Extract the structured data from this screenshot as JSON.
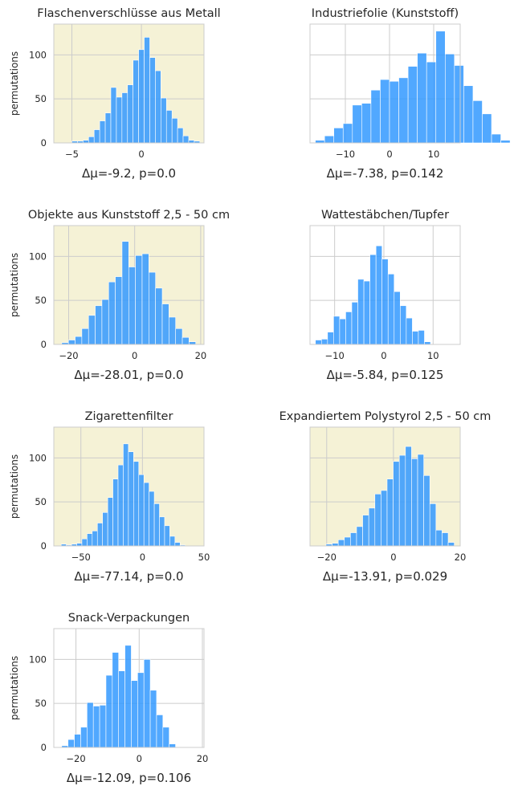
{
  "figure": {
    "ylabel": "permutations"
  },
  "colors": {
    "bar": "#3399ff",
    "highlight_bg": "#f5f2d6",
    "plain_bg": "#ffffff",
    "grid": "#cccccc"
  },
  "chart_data": [
    {
      "type": "bar",
      "title": "Flaschenverschlüsse aus Metall",
      "xlabel": "Δμ=-9.2, p=0.0",
      "ylabel": "permutations",
      "highlighted": true,
      "xlim": [
        -6.3,
        4.5
      ],
      "ylim": [
        0,
        135
      ],
      "xticks": [
        -5,
        0
      ],
      "yticks": [
        0,
        50,
        100
      ],
      "bin_start": -5.0,
      "bin_width": 0.4,
      "values": [
        2,
        2,
        3,
        7,
        15,
        25,
        34,
        63,
        52,
        57,
        66,
        94,
        106,
        120,
        97,
        82,
        51,
        37,
        28,
        17,
        8,
        3,
        2
      ]
    },
    {
      "type": "bar",
      "title": "Industriefolie (Kunststoff)",
      "xlabel": "Δμ=-7.38, p=0.142",
      "ylabel": "permutations",
      "highlighted": false,
      "xlim": [
        -18,
        16
      ],
      "ylim": [
        0,
        135
      ],
      "xticks": [
        -10,
        0,
        10
      ],
      "yticks": [
        0,
        50,
        100
      ],
      "bin_start": -16.8,
      "bin_width": 2.1,
      "values": [
        3,
        8,
        17,
        22,
        43,
        45,
        60,
        72,
        70,
        74,
        87,
        102,
        92,
        127,
        101,
        88,
        65,
        48,
        33,
        10,
        3
      ]
    },
    {
      "type": "bar",
      "title": "Objekte aus Kunststoff 2,5 - 50 cm",
      "xlabel": "Δμ=-28.01, p=0.0",
      "ylabel": "permutations",
      "highlighted": true,
      "xlim": [
        -24.5,
        21
      ],
      "ylim": [
        0,
        135
      ],
      "xticks": [
        -20,
        0,
        20
      ],
      "yticks": [
        0,
        50,
        100
      ],
      "bin_start": -22.1,
      "bin_width": 2.03,
      "values": [
        2,
        5,
        9,
        18,
        33,
        44,
        51,
        71,
        77,
        117,
        88,
        101,
        103,
        82,
        64,
        46,
        31,
        18,
        8,
        3
      ]
    },
    {
      "type": "bar",
      "title": "Wattestäbchen/Tupfer",
      "xlabel": "Δμ=-5.84, p=0.125",
      "ylabel": "permutations",
      "highlighted": false,
      "xlim": [
        -15,
        15.5
      ],
      "ylim": [
        0,
        135
      ],
      "xticks": [
        -10,
        0,
        10
      ],
      "yticks": [
        0,
        50,
        100
      ],
      "bin_start": -13.9,
      "bin_width": 1.23,
      "values": [
        5,
        6,
        14,
        32,
        29,
        37,
        48,
        74,
        72,
        102,
        112,
        97,
        80,
        60,
        44,
        30,
        15,
        16,
        3
      ]
    },
    {
      "type": "bar",
      "title": "Zigarettenfilter",
      "xlabel": "Δμ=-77.14, p=0.0",
      "ylabel": "permutations",
      "highlighted": true,
      "xlim": [
        -72,
        50
      ],
      "ylim": [
        0,
        135
      ],
      "xticks": [
        -50,
        0,
        50
      ],
      "yticks": [
        0,
        50,
        100
      ],
      "bin_start": -66,
      "bin_width": 4.2,
      "values": [
        2,
        1,
        2,
        3,
        8,
        14,
        17,
        26,
        38,
        55,
        76,
        92,
        116,
        107,
        96,
        81,
        72,
        62,
        48,
        33,
        23,
        11,
        4,
        1
      ]
    },
    {
      "type": "bar",
      "title": "Expandiertem Polystyrol 2,5 - 50 cm",
      "xlabel": "Δμ=-13.91, p=0.029",
      "ylabel": "permutations",
      "highlighted": true,
      "xlim": [
        -25,
        20
      ],
      "ylim": [
        0,
        135
      ],
      "xticks": [
        -20,
        0,
        20
      ],
      "yticks": [
        0,
        50,
        100
      ],
      "bin_start": -20.2,
      "bin_width": 1.83,
      "values": [
        2,
        3,
        7,
        10,
        15,
        22,
        35,
        43,
        59,
        63,
        76,
        96,
        103,
        113,
        99,
        104,
        80,
        48,
        18,
        15,
        4
      ]
    },
    {
      "type": "bar",
      "title": "Snack-Verpackungen",
      "xlabel": "Δμ=-12.09, p=0.106",
      "ylabel": "permutations",
      "highlighted": false,
      "xlim": [
        -27,
        20.5
      ],
      "ylim": [
        0,
        135
      ],
      "xticks": [
        -20,
        0,
        20
      ],
      "yticks": [
        0,
        50,
        100
      ],
      "bin_start": -24.5,
      "bin_width": 2.0,
      "values": [
        2,
        9,
        15,
        23,
        51,
        47,
        48,
        82,
        108,
        87,
        116,
        76,
        85,
        100,
        65,
        37,
        23,
        4
      ]
    }
  ]
}
